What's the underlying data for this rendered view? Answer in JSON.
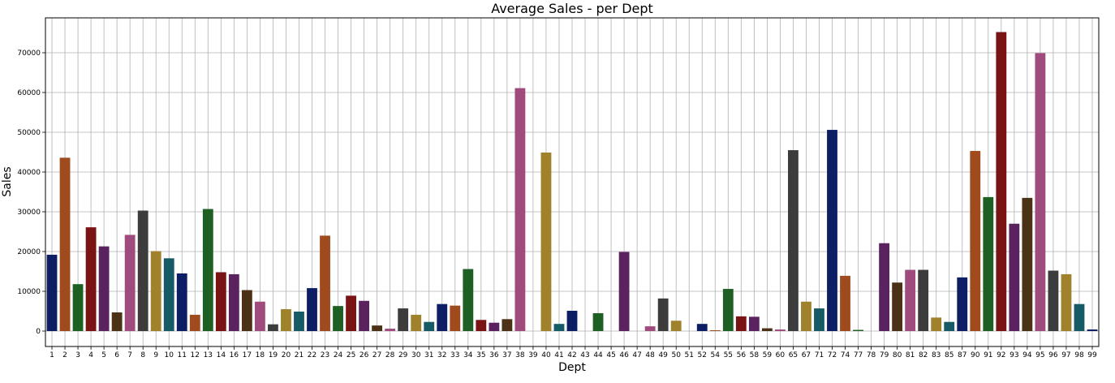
{
  "chart_data": {
    "type": "bar",
    "title": "Average Sales - per Dept",
    "xlabel": "Dept",
    "ylabel": "Sales",
    "ylim": [
      -4000,
      79000
    ],
    "yticks": [
      0,
      10000,
      20000,
      30000,
      40000,
      50000,
      60000,
      70000
    ],
    "grid": true,
    "categories": [
      "1",
      "2",
      "3",
      "4",
      "5",
      "6",
      "7",
      "8",
      "9",
      "10",
      "11",
      "12",
      "13",
      "14",
      "16",
      "17",
      "18",
      "19",
      "20",
      "21",
      "22",
      "23",
      "24",
      "25",
      "26",
      "27",
      "28",
      "29",
      "30",
      "31",
      "32",
      "33",
      "34",
      "35",
      "36",
      "37",
      "38",
      "39",
      "40",
      "41",
      "42",
      "43",
      "44",
      "45",
      "46",
      "47",
      "48",
      "49",
      "50",
      "51",
      "52",
      "54",
      "55",
      "56",
      "58",
      "59",
      "60",
      "65",
      "67",
      "71",
      "72",
      "74",
      "77",
      "78",
      "79",
      "80",
      "81",
      "82",
      "83",
      "85",
      "87",
      "90",
      "91",
      "92",
      "93",
      "94",
      "95",
      "96",
      "97",
      "98",
      "99"
    ],
    "values": [
      19200,
      43600,
      11800,
      26100,
      21300,
      4700,
      24200,
      30300,
      20100,
      18300,
      14500,
      4100,
      30700,
      14800,
      14300,
      10300,
      7400,
      1700,
      5500,
      4900,
      10800,
      24000,
      6300,
      8900,
      7600,
      1400,
      600,
      5700,
      4100,
      2300,
      6800,
      6400,
      15600,
      2800,
      2100,
      3000,
      61100,
      0,
      44900,
      1800,
      5100,
      0,
      4500,
      0,
      19900,
      0,
      1200,
      8200,
      2600,
      0,
      1800,
      200,
      10600,
      3700,
      3600,
      700,
      400,
      45500,
      7400,
      5700,
      50600,
      13900,
      300,
      0,
      22100,
      12200,
      15400,
      15400,
      3400,
      2300,
      13500,
      45300,
      33700,
      75200,
      27000,
      33500,
      69900,
      15200,
      14300,
      6800,
      400
    ],
    "palette": [
      "#0d1e64",
      "#a04b1e",
      "#1e5f23",
      "#7a1414",
      "#5a235f",
      "#4b3217",
      "#a04b7d",
      "#3c3c3c",
      "#a0822d",
      "#155a64"
    ]
  }
}
